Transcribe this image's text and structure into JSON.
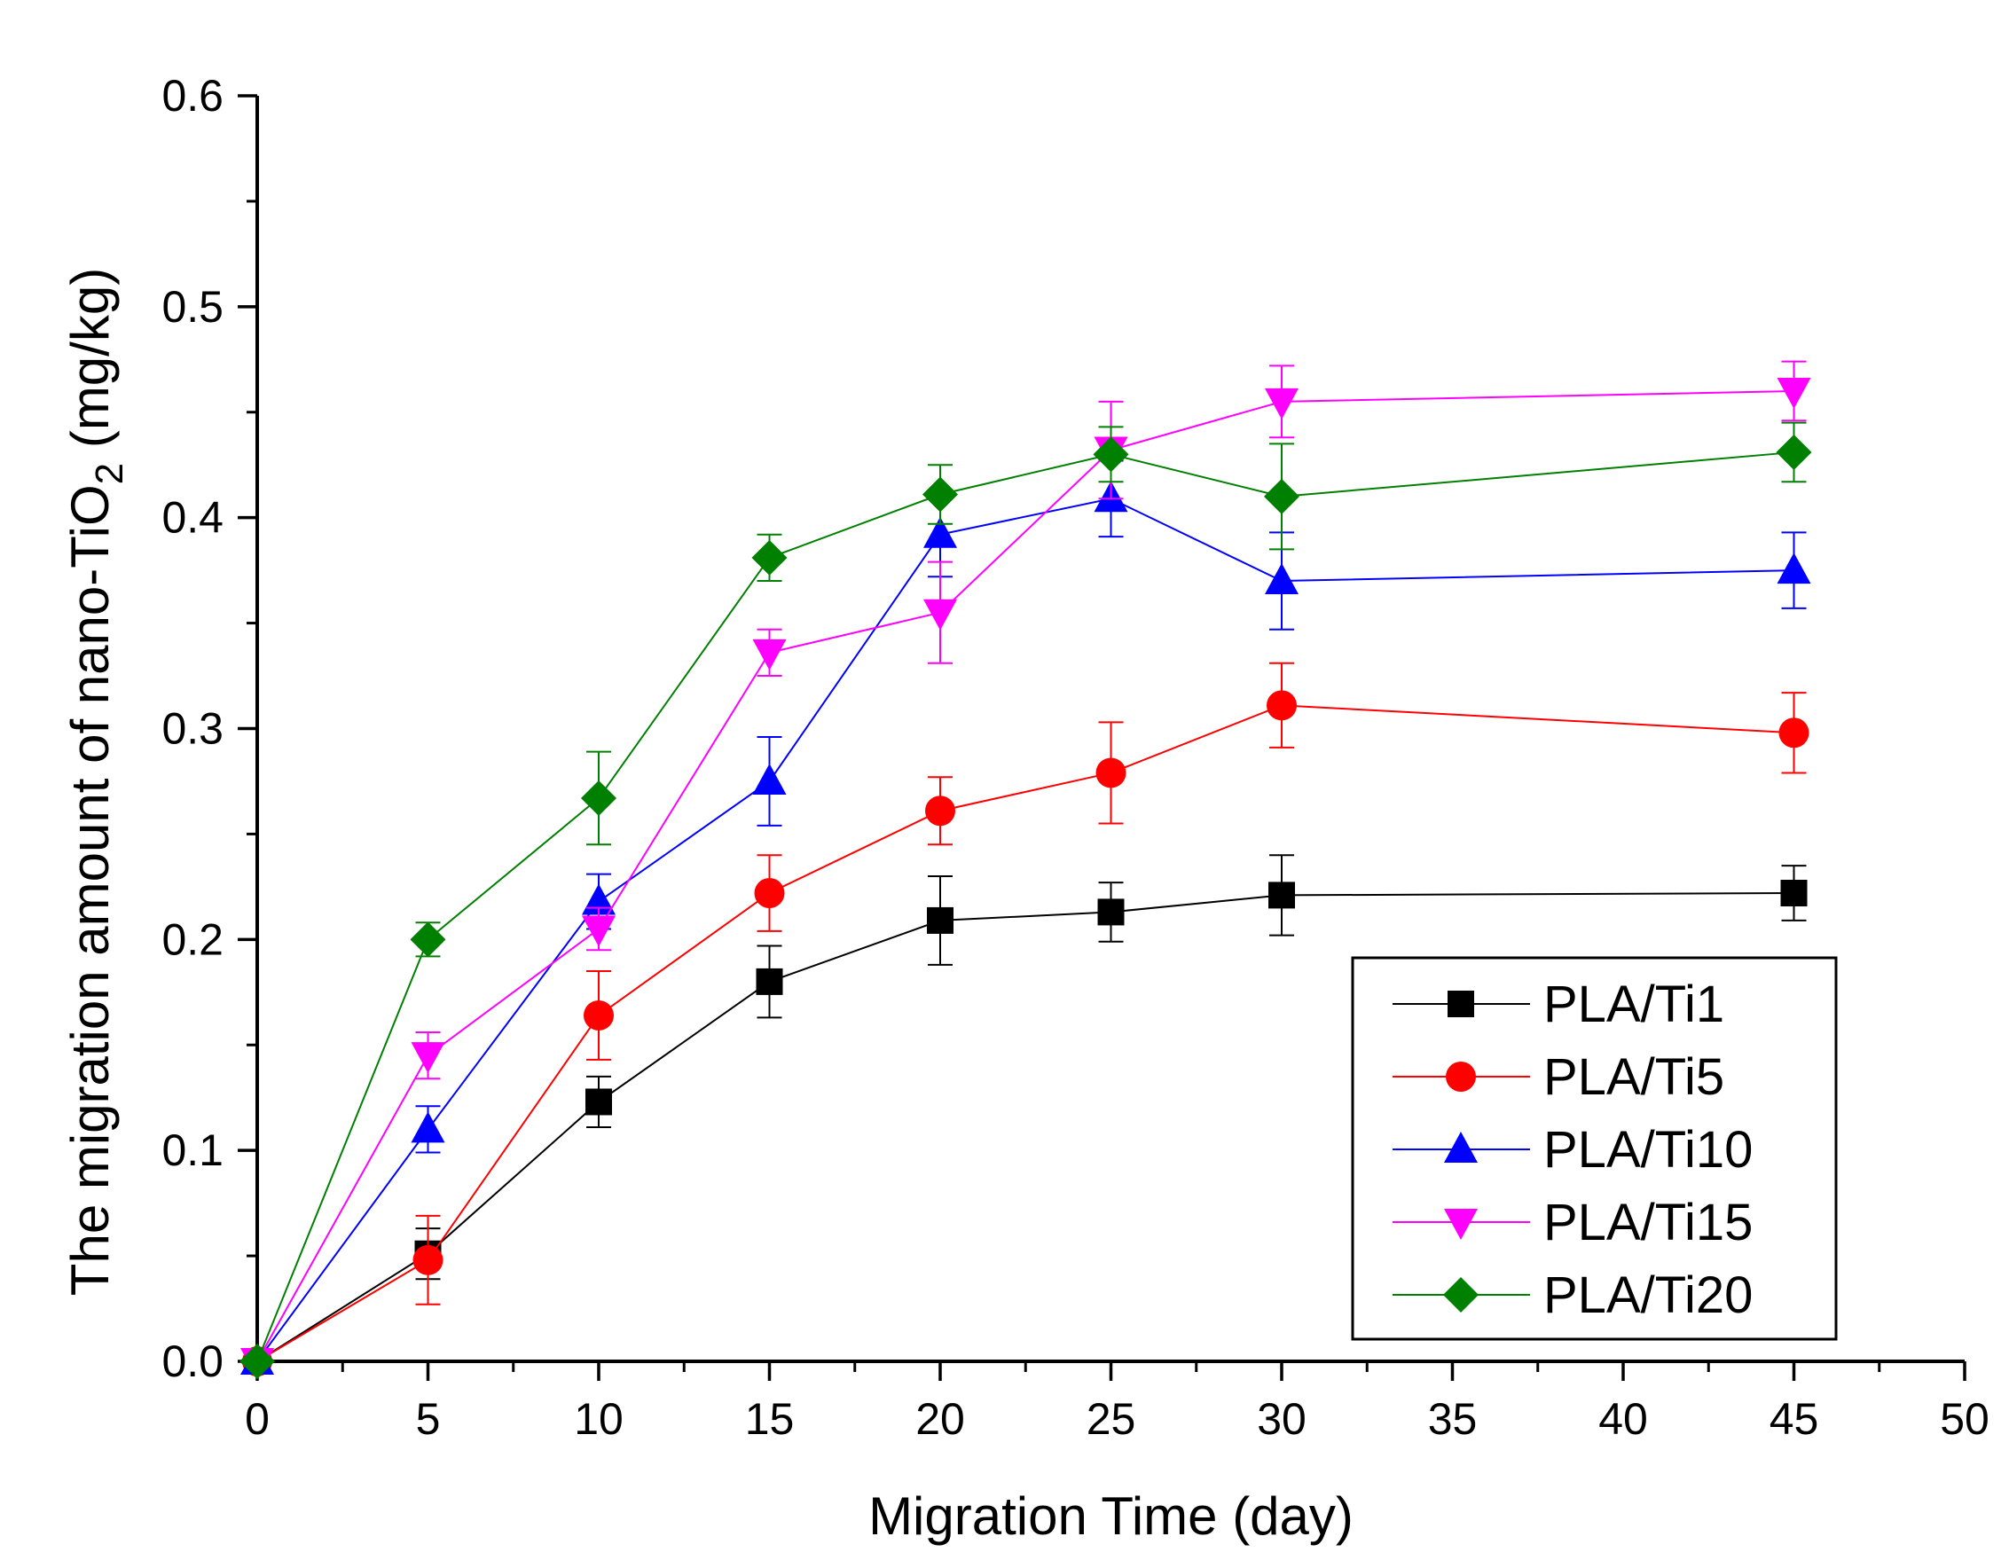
{
  "chart_data": {
    "type": "line",
    "title": "",
    "xlabel": "Migration Time (day)",
    "ylabel": {
      "prefix": "The migration amount of nano-TiO",
      "subscript": "2",
      "suffix": " (mg/kg)"
    },
    "xlim": [
      0,
      50
    ],
    "ylim": [
      0.0,
      0.6
    ],
    "x_ticks": [
      "0",
      "5",
      "10",
      "15",
      "20",
      "25",
      "30",
      "35",
      "40",
      "45",
      "50"
    ],
    "y_ticks": [
      "0.0",
      "0.1",
      "0.2",
      "0.3",
      "0.4",
      "0.5",
      "0.6"
    ],
    "grid": false,
    "legend_position": "bottom-right",
    "x": [
      0,
      5,
      10,
      15,
      20,
      25,
      30,
      45
    ],
    "series": [
      {
        "name": "PLA/Ti1",
        "color": "#000000",
        "marker": "square",
        "values": [
          0.0,
          0.051,
          0.123,
          0.18,
          0.209,
          0.213,
          0.221,
          0.222
        ],
        "errors": [
          0.0,
          0.012,
          0.012,
          0.017,
          0.021,
          0.014,
          0.019,
          0.013
        ]
      },
      {
        "name": "PLA/Ti5",
        "color": "#ff0000",
        "marker": "circle",
        "values": [
          0.0,
          0.048,
          0.164,
          0.222,
          0.261,
          0.279,
          0.311,
          0.298
        ],
        "errors": [
          0.0,
          0.021,
          0.021,
          0.018,
          0.016,
          0.024,
          0.02,
          0.019
        ]
      },
      {
        "name": "PLA/Ti10",
        "color": "#0000ff",
        "marker": "triangle-up",
        "values": [
          0.0,
          0.11,
          0.218,
          0.275,
          0.392,
          0.409,
          0.37,
          0.375
        ],
        "errors": [
          0.0,
          0.011,
          0.013,
          0.021,
          0.02,
          0.018,
          0.023,
          0.018
        ]
      },
      {
        "name": "PLA/Ti15",
        "color": "#ff00ff",
        "marker": "triangle-down",
        "values": [
          0.0,
          0.145,
          0.205,
          0.336,
          0.355,
          0.432,
          0.455,
          0.46
        ],
        "errors": [
          0.0,
          0.011,
          0.01,
          0.011,
          0.024,
          0.023,
          0.017,
          0.014
        ]
      },
      {
        "name": "PLA/Ti20",
        "color": "#008000",
        "marker": "diamond",
        "values": [
          0.0,
          0.2,
          0.267,
          0.381,
          0.411,
          0.43,
          0.41,
          0.431
        ],
        "errors": [
          0.0,
          0.008,
          0.022,
          0.011,
          0.014,
          0.013,
          0.025,
          0.014
        ]
      }
    ]
  }
}
